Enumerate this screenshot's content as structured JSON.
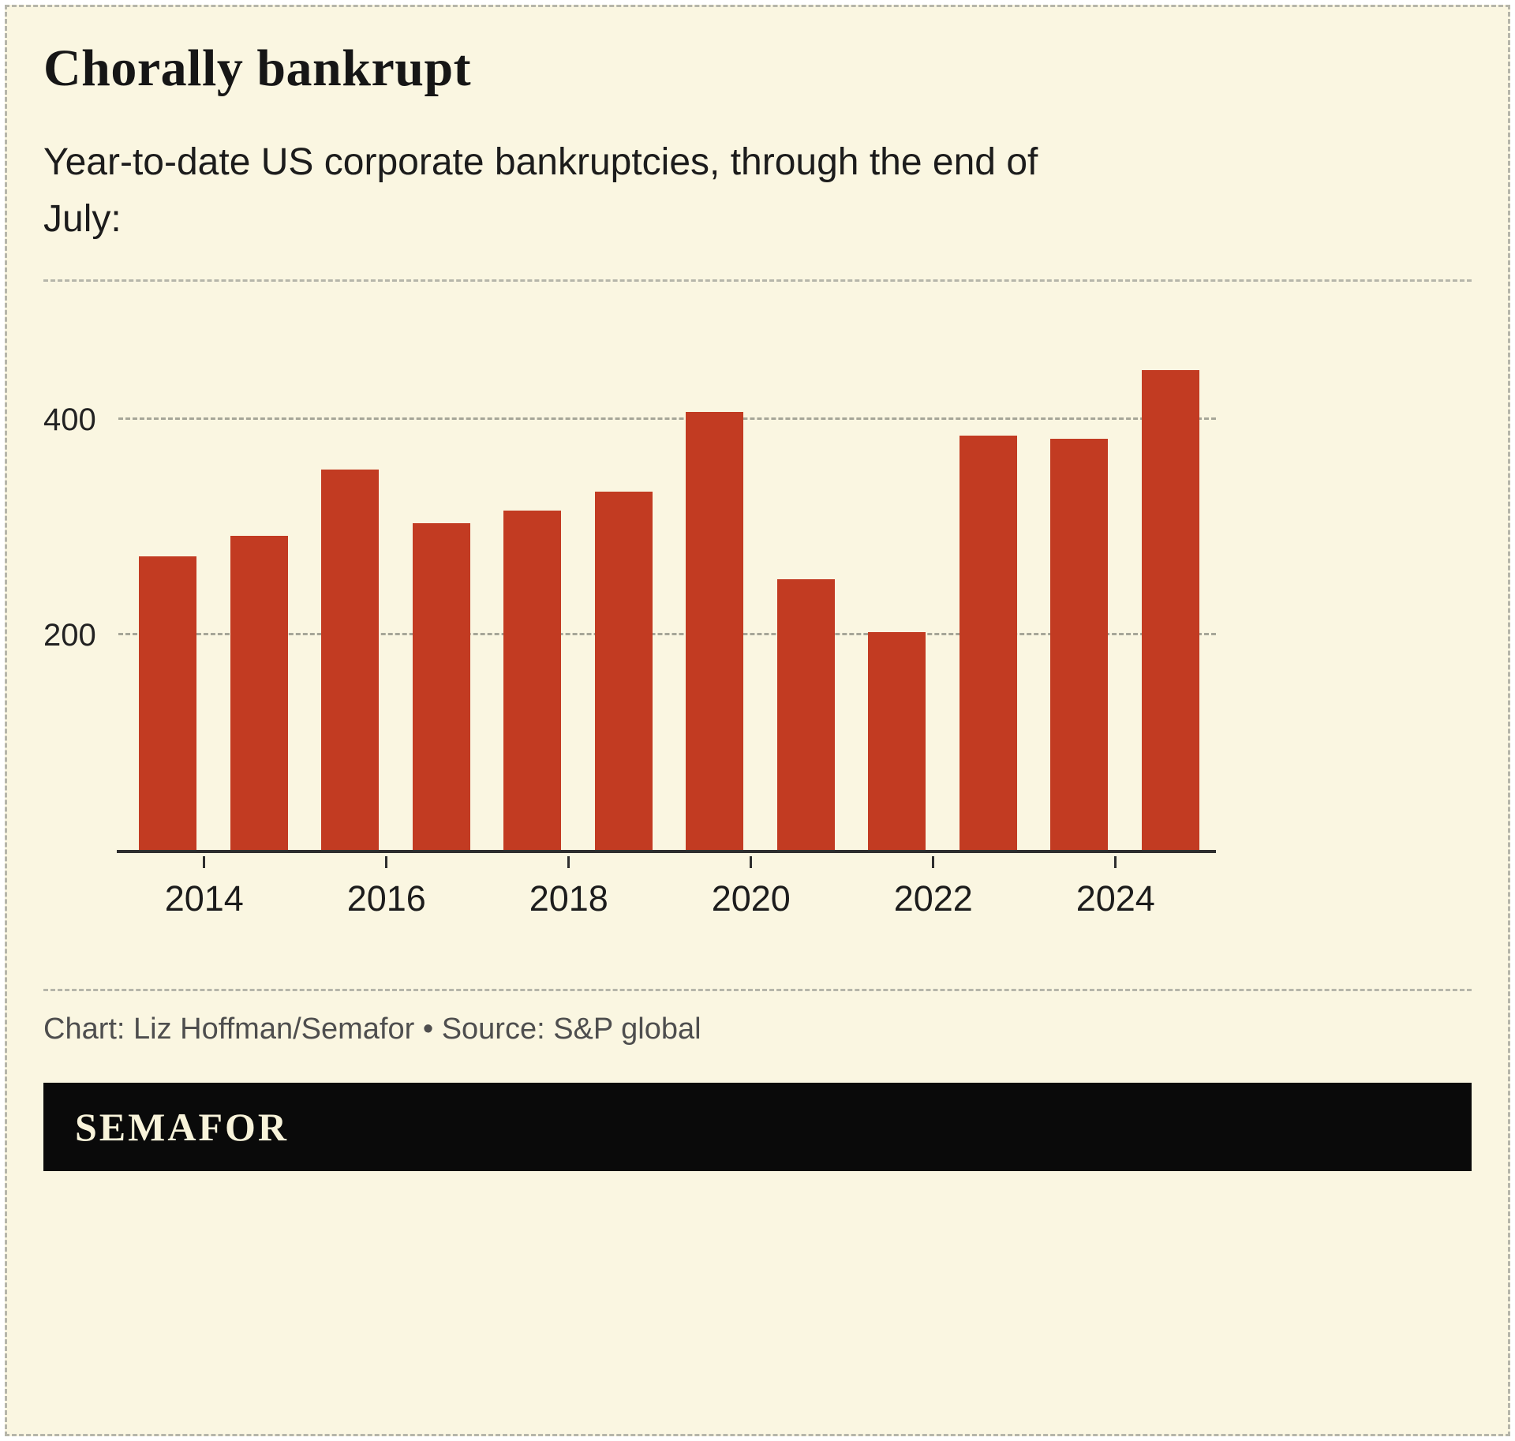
{
  "header": {
    "title": "Chorally bankrupt",
    "subtitle": "Year-to-date US corporate bankruptcies, through the end of July:"
  },
  "chart_data": {
    "type": "bar",
    "title": "Chorally bankrupt",
    "subtitle": "Year-to-date US corporate bankruptcies, through the end of July:",
    "categories": [
      "2014",
      "2015",
      "2016",
      "2017",
      "2018",
      "2019",
      "2020",
      "2021",
      "2022",
      "2023",
      "2024",
      "2025"
    ],
    "values": [
      273,
      292,
      354,
      304,
      316,
      333,
      407,
      252,
      203,
      385,
      382,
      446
    ],
    "xlabel": "",
    "ylabel": "",
    "ylim": [
      0,
      490
    ],
    "y_ticks": [
      200,
      400
    ],
    "x_tick_labels": [
      "2014",
      "2016",
      "2018",
      "2020",
      "2022",
      "2024"
    ],
    "grid": "horizontal-dashed",
    "legend": "none",
    "bar_color": "#c23b22"
  },
  "footer": {
    "credit": "Chart: Liz Hoffman/Semafor • Source: S&P global",
    "brand": "SEMAFOR"
  },
  "colors": {
    "background": "#faf6e1",
    "bar": "#c23b22",
    "banner_bg": "#0a0a0a",
    "banner_text": "#f8f3da",
    "gridline": "#a6a698"
  }
}
